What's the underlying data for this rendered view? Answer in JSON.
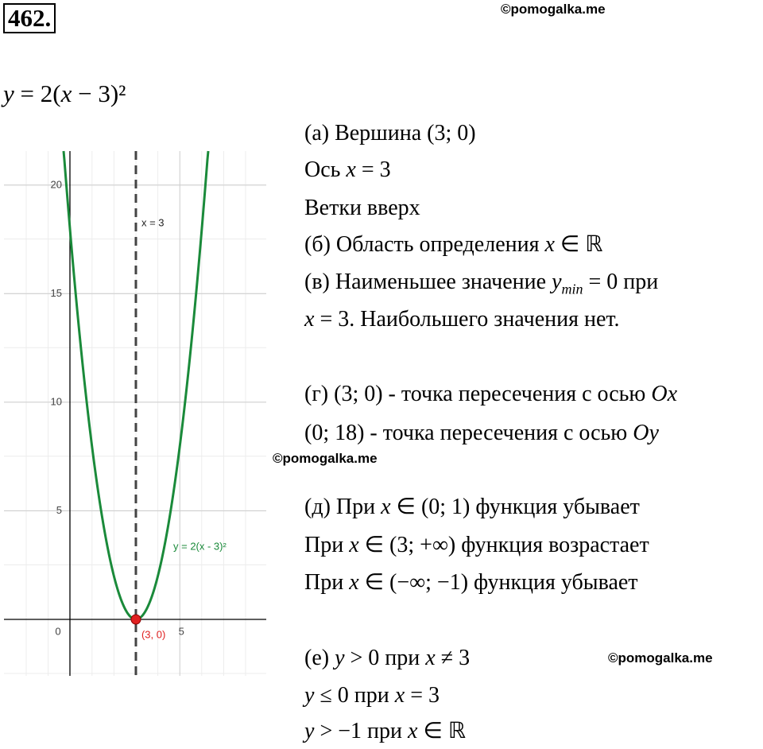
{
  "header": {
    "number": "462.",
    "watermark": "©pomogalka.me"
  },
  "formula": [
    {
      "italic": "y"
    },
    " = 2(",
    {
      "italic": "x"
    },
    " − 3)²"
  ],
  "graph": {
    "xlim": [
      -3.0,
      8.93
    ],
    "ylim": [
      -2.6,
      21.57
    ],
    "xticks": [
      5
    ],
    "yticks": [
      5,
      10,
      15,
      20
    ],
    "origin": "0",
    "grid": true,
    "curve": {
      "label": "y = 2(x - 3)²",
      "a": 2,
      "color": "#1a8a3a"
    },
    "axis_line": {
      "label": "x = 3",
      "x": 3
    },
    "point": {
      "label": "(3, 0)",
      "x": 3,
      "y": 0,
      "color": "#e02020"
    }
  },
  "lines": [
    [
      "(а) Вершина (3; 0)"
    ],
    [
      "Ось ",
      {
        "italic": "x"
      },
      " = 3"
    ],
    [
      "Ветки вверх"
    ],
    [
      "(б) Область определения ",
      {
        "italic": "x"
      },
      " ∈ ℝ"
    ],
    [
      "(в) Наименьшее значение ",
      {
        "italic": "y"
      },
      {
        "sub": "min"
      },
      " = 0 при"
    ],
    [
      {
        "italic": "x"
      },
      " = 3. Наибольшего значения нет."
    ],
    [
      "(г) (3; 0) - точка пересечения с осью ",
      {
        "italic": "Ox"
      }
    ],
    [
      "(0; 18) - точка пересечения с осью ",
      {
        "italic": "Oy"
      }
    ],
    [
      "(д) При ",
      {
        "italic": "x"
      },
      " ∈ (0; 1) функция убывает"
    ],
    [
      "При ",
      {
        "italic": "x"
      },
      " ∈ (3; +∞) функция возрастает"
    ],
    [
      "При ",
      {
        "italic": "x"
      },
      " ∈ (−∞; −1) функция убывает"
    ],
    [
      "(е) ",
      {
        "italic": "y"
      },
      " > 0 при ",
      {
        "italic": "x"
      },
      " ≠ 3"
    ],
    [
      {
        "italic": "y"
      },
      " ≤ 0 при ",
      {
        "italic": "x"
      },
      " = 3"
    ],
    [
      {
        "italic": "y"
      },
      " > −1 при ",
      {
        "italic": "x"
      },
      " ∈ ℝ"
    ]
  ]
}
